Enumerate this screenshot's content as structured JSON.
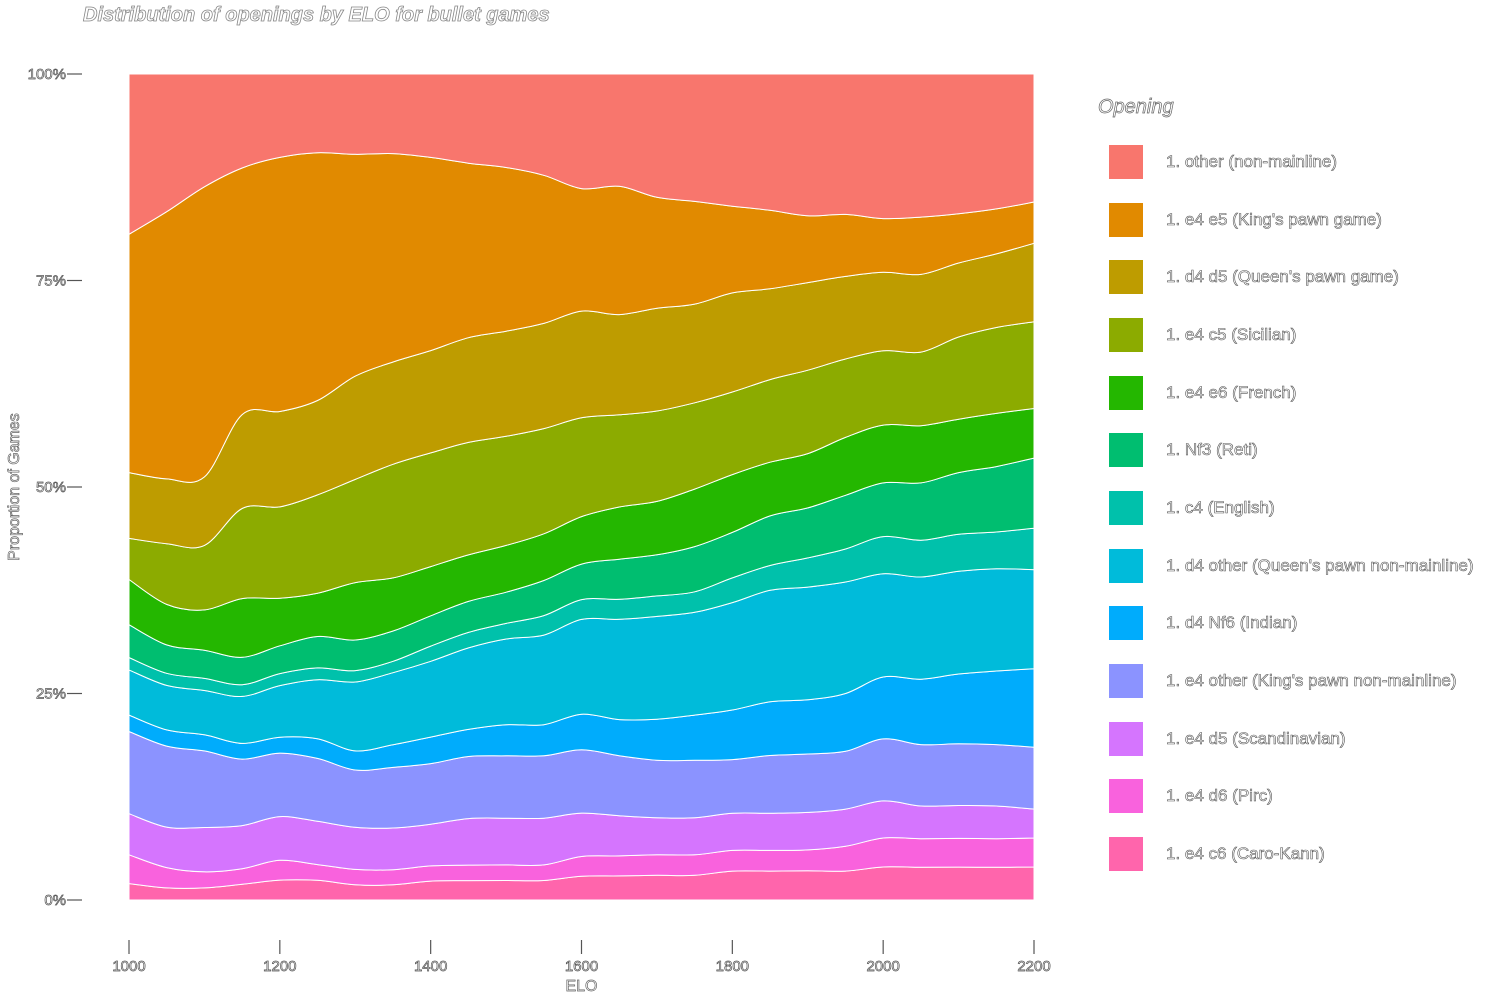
{
  "chart_data": {
    "type": "area",
    "title": "Distribution of openings by ELO for bullet games",
    "xlabel": "ELO",
    "ylabel": "Proportion of Games",
    "x": [
      1000,
      1050,
      1100,
      1150,
      1200,
      1250,
      1300,
      1350,
      1400,
      1450,
      1500,
      1550,
      1600,
      1650,
      1700,
      1750,
      1800,
      1850,
      1900,
      1950,
      2000,
      2050,
      2100,
      2150,
      2200
    ],
    "xlim": [
      1000,
      2200
    ],
    "ylim": [
      0,
      1
    ],
    "x_ticks": [
      "1000",
      "1200",
      "1400",
      "1600",
      "1800",
      "2000",
      "2200"
    ],
    "y_ticks": [
      "0%",
      "25%",
      "50%",
      "75%",
      "100%"
    ],
    "legend_title": "Opening",
    "legend_position": "right",
    "stacked": true,
    "series": [
      {
        "name": "1. other (non-mainline)",
        "color": "#F8766D",
        "values": [
          0.195,
          0.17,
          0.14,
          0.12,
          0.105,
          0.1,
          0.105,
          0.105,
          0.11,
          0.115,
          0.12,
          0.13,
          0.145,
          0.14,
          0.15,
          0.155,
          0.16,
          0.165,
          0.17,
          0.17,
          0.175,
          0.175,
          0.17,
          0.165,
          0.155
        ]
      },
      {
        "name": "1. e4 e5 (King's pawn game)",
        "color": "#E18A00",
        "values": [
          0.29,
          0.33,
          0.36,
          0.315,
          0.32,
          0.315,
          0.29,
          0.275,
          0.255,
          0.225,
          0.21,
          0.19,
          0.155,
          0.16,
          0.135,
          0.125,
          0.105,
          0.095,
          0.08,
          0.075,
          0.065,
          0.07,
          0.06,
          0.055,
          0.05
        ]
      },
      {
        "name": "1. d4 d5 (Queen's pawn game)",
        "color": "#BE9C00",
        "values": [
          0.08,
          0.08,
          0.085,
          0.12,
          0.12,
          0.12,
          0.135,
          0.135,
          0.135,
          0.135,
          0.135,
          0.135,
          0.135,
          0.125,
          0.125,
          0.12,
          0.12,
          0.11,
          0.105,
          0.1,
          0.095,
          0.095,
          0.09,
          0.09,
          0.095
        ]
      },
      {
        "name": "1. e4 c5 (Sicilian)",
        "color": "#8CAB00",
        "values": [
          0.05,
          0.075,
          0.08,
          0.115,
          0.115,
          0.125,
          0.135,
          0.15,
          0.15,
          0.145,
          0.14,
          0.135,
          0.125,
          0.115,
          0.11,
          0.105,
          0.1,
          0.1,
          0.1,
          0.095,
          0.09,
          0.09,
          0.1,
          0.105,
          0.105
        ]
      },
      {
        "name": "1. e4 e6 (French)",
        "color": "#24B700",
        "values": [
          0.055,
          0.05,
          0.05,
          0.075,
          0.06,
          0.055,
          0.075,
          0.07,
          0.065,
          0.06,
          0.06,
          0.06,
          0.06,
          0.065,
          0.065,
          0.07,
          0.07,
          0.065,
          0.065,
          0.07,
          0.07,
          0.07,
          0.065,
          0.065,
          0.06
        ]
      },
      {
        "name": "1. Nf3 (Reti)",
        "color": "#00BE70",
        "values": [
          0.04,
          0.035,
          0.035,
          0.035,
          0.035,
          0.04,
          0.04,
          0.04,
          0.04,
          0.04,
          0.04,
          0.045,
          0.045,
          0.05,
          0.05,
          0.055,
          0.055,
          0.06,
          0.06,
          0.065,
          0.065,
          0.07,
          0.075,
          0.08,
          0.085
        ]
      },
      {
        "name": "1. c4 (English)",
        "color": "#00C1AB",
        "values": [
          0.015,
          0.015,
          0.015,
          0.015,
          0.015,
          0.015,
          0.015,
          0.015,
          0.02,
          0.02,
          0.02,
          0.025,
          0.025,
          0.025,
          0.025,
          0.025,
          0.03,
          0.03,
          0.035,
          0.04,
          0.045,
          0.045,
          0.045,
          0.045,
          0.05
        ]
      },
      {
        "name": "1. d4 other (Queen's pawn non-mainline)",
        "color": "#00BBDA",
        "values": [
          0.055,
          0.055,
          0.055,
          0.06,
          0.065,
          0.075,
          0.09,
          0.095,
          0.1,
          0.105,
          0.11,
          0.115,
          0.12,
          0.125,
          0.125,
          0.125,
          0.13,
          0.135,
          0.135,
          0.135,
          0.125,
          0.125,
          0.125,
          0.125,
          0.12
        ]
      },
      {
        "name": "1. d4 Nf6 (Indian)",
        "color": "#00ACFC",
        "values": [
          0.02,
          0.02,
          0.02,
          0.02,
          0.02,
          0.025,
          0.025,
          0.03,
          0.035,
          0.035,
          0.04,
          0.04,
          0.045,
          0.045,
          0.05,
          0.055,
          0.06,
          0.065,
          0.065,
          0.07,
          0.075,
          0.08,
          0.085,
          0.09,
          0.095
        ]
      },
      {
        "name": "1. e4 other (King's pawn non-mainline)",
        "color": "#8B93FF",
        "values": [
          0.1,
          0.1,
          0.095,
          0.085,
          0.08,
          0.08,
          0.075,
          0.08,
          0.08,
          0.08,
          0.08,
          0.08,
          0.08,
          0.075,
          0.07,
          0.07,
          0.065,
          0.07,
          0.07,
          0.07,
          0.075,
          0.075,
          0.075,
          0.075,
          0.075
        ]
      },
      {
        "name": "1. e4 d5 (Scandinavian)",
        "color": "#D575FE",
        "values": [
          0.05,
          0.05,
          0.055,
          0.055,
          0.055,
          0.055,
          0.055,
          0.055,
          0.055,
          0.06,
          0.06,
          0.06,
          0.055,
          0.05,
          0.045,
          0.045,
          0.045,
          0.045,
          0.045,
          0.045,
          0.045,
          0.04,
          0.04,
          0.04,
          0.035
        ]
      },
      {
        "name": "1. e4 d6 (Pirc)",
        "color": "#F962DD",
        "values": [
          0.035,
          0.025,
          0.02,
          0.02,
          0.025,
          0.02,
          0.02,
          0.02,
          0.02,
          0.02,
          0.02,
          0.02,
          0.025,
          0.025,
          0.025,
          0.025,
          0.025,
          0.025,
          0.025,
          0.03,
          0.035,
          0.035,
          0.035,
          0.035,
          0.035
        ]
      },
      {
        "name": "1. e4 c6 (Caro-Kann)",
        "color": "#FF65AC",
        "values": [
          0.02,
          0.015,
          0.015,
          0.02,
          0.025,
          0.025,
          0.02,
          0.02,
          0.025,
          0.025,
          0.025,
          0.025,
          0.03,
          0.03,
          0.03,
          0.03,
          0.035,
          0.035,
          0.035,
          0.035,
          0.04,
          0.04,
          0.04,
          0.04,
          0.04
        ]
      }
    ]
  }
}
